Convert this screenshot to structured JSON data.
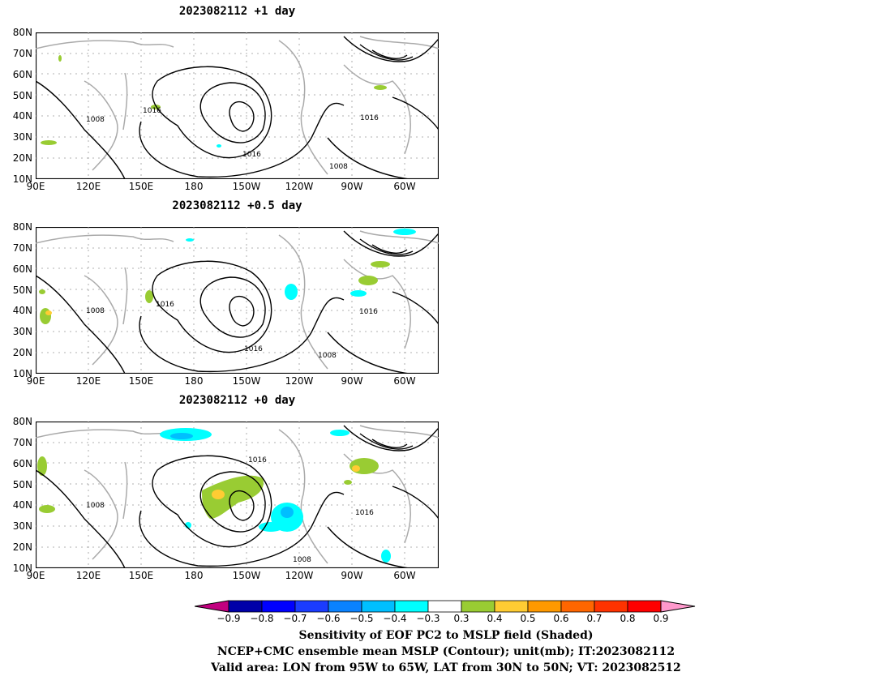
{
  "panels": [
    {
      "title": "2023082112 +1 day",
      "contour_labels": [
        "1016",
        "1008",
        "1016",
        "1016",
        "1008"
      ]
    },
    {
      "title": "2023082112 +0.5 day",
      "contour_labels": [
        "1016",
        "1008",
        "1016",
        "1016",
        "1008"
      ]
    },
    {
      "title": "2023082112 +0 day",
      "contour_labels": [
        "1016",
        "1008",
        "1016",
        "1008"
      ]
    }
  ],
  "lat_labels": [
    "80N",
    "70N",
    "60N",
    "50N",
    "40N",
    "30N",
    "20N",
    "10N"
  ],
  "lon_labels": [
    "90E",
    "120E",
    "150E",
    "180",
    "150W",
    "120W",
    "90W",
    "60W"
  ],
  "colorbar": {
    "ticks": [
      "−0.9",
      "−0.8",
      "−0.7",
      "−0.6",
      "−0.5",
      "−0.4",
      "−0.3",
      "0.3",
      "0.4",
      "0.5",
      "0.6",
      "0.7",
      "0.8",
      "0.9"
    ],
    "colors": [
      "#c1007f",
      "#0000a8",
      "#0000ff",
      "#1b3cff",
      "#0a82ff",
      "#00bfff",
      "#00ffff",
      "#ffffff",
      "#99cc33",
      "#ffcc33",
      "#ff9900",
      "#ff6600",
      "#ff3300",
      "#ff0000",
      "#ff99cc"
    ]
  },
  "caption": {
    "line1": "Sensitivity of EOF PC2 to MSLP field (Shaded)",
    "line2": "NCEP+CMC ensemble mean MSLP (Contour); unit(mb); IT:2023082112",
    "line3": "Valid area: LON from 95W to 65W, LAT from 30N to 50N; VT: 2023082512"
  }
}
